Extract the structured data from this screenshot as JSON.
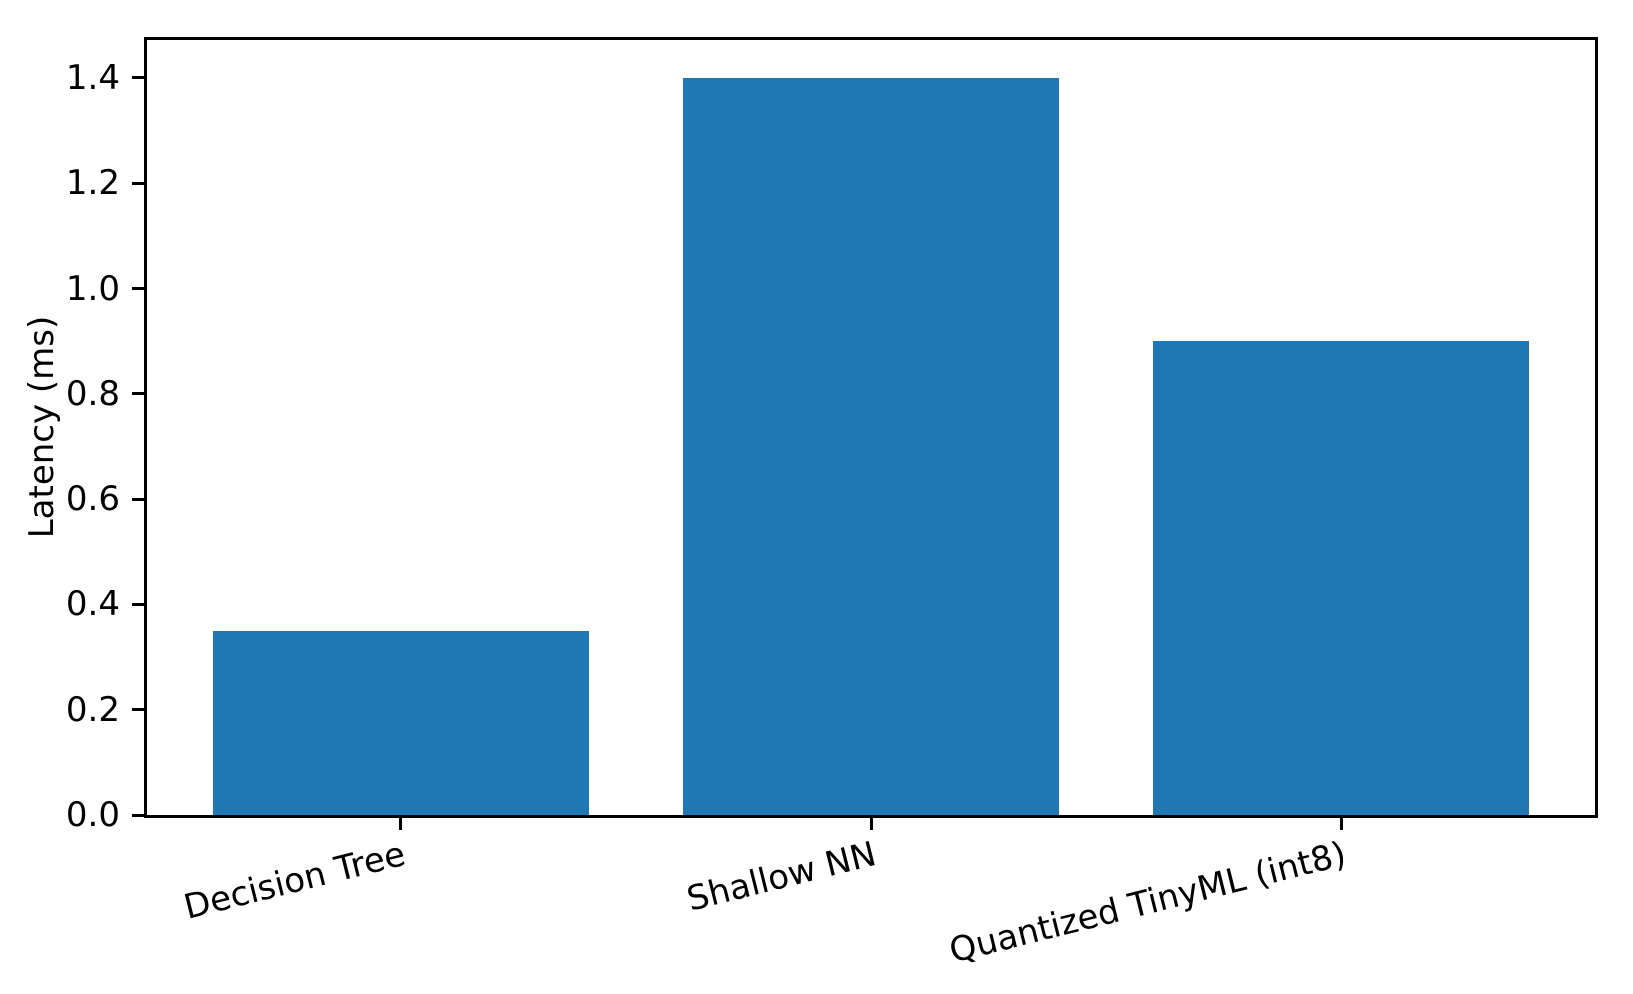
{
  "chart_data": {
    "type": "bar",
    "categories": [
      "Decision Tree",
      "Shallow NN",
      "Quantized TinyML (int8)"
    ],
    "values": [
      0.35,
      1.4,
      0.9
    ],
    "title": "",
    "xlabel": "",
    "ylabel": "Latency (ms)",
    "ylim": [
      0,
      1.472
    ],
    "xlim": [
      -0.54,
      2.54
    ],
    "yticks": [
      0.0,
      0.2,
      0.4,
      0.6,
      0.8,
      1.0,
      1.2,
      1.4
    ],
    "ytick_labels": [
      "0.0",
      "0.2",
      "0.4",
      "0.6",
      "0.8",
      "1.0",
      "1.2",
      "1.4"
    ],
    "bar_width": 0.8,
    "bar_color": "#1f77b4",
    "axis_color": "#000000",
    "background_color": "#ffffff",
    "grid": false,
    "legend": null,
    "xtick_label_rotation_deg": 14
  }
}
